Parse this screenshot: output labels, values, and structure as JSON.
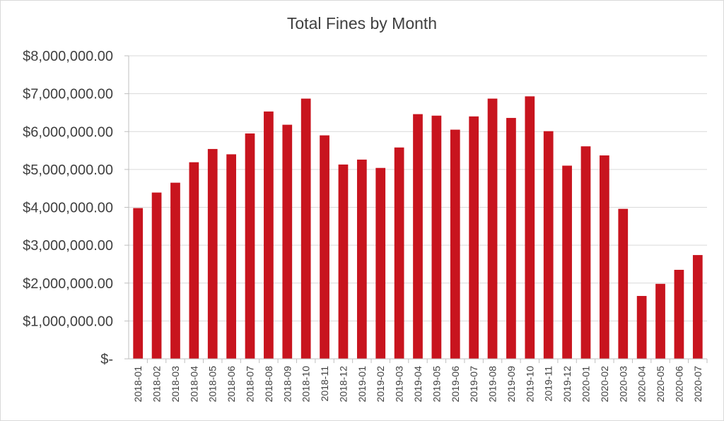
{
  "chart_data": {
    "type": "bar",
    "title": "Total Fines by Month",
    "xlabel": "",
    "ylabel": "",
    "ylim": [
      0,
      8000000
    ],
    "y_ticks": [
      {
        "value": 0,
        "label": "$-"
      },
      {
        "value": 1000000,
        "label": "$1,000,000.00"
      },
      {
        "value": 2000000,
        "label": "$2,000,000.00"
      },
      {
        "value": 3000000,
        "label": "$3,000,000.00"
      },
      {
        "value": 4000000,
        "label": "$4,000,000.00"
      },
      {
        "value": 5000000,
        "label": "$5,000,000.00"
      },
      {
        "value": 6000000,
        "label": "$6,000,000.00"
      },
      {
        "value": 7000000,
        "label": "$7,000,000.00"
      },
      {
        "value": 8000000,
        "label": "$8,000,000.00"
      }
    ],
    "grid": true,
    "legend": "none",
    "bar_color": "#c8141e",
    "categories": [
      "2018-01",
      "2018-02",
      "2018-03",
      "2018-04",
      "2018-05",
      "2018-06",
      "2018-07",
      "2018-08",
      "2018-09",
      "2018-10",
      "2018-11",
      "2018-12",
      "2019-01",
      "2019-02",
      "2019-03",
      "2019-04",
      "2019-05",
      "2019-06",
      "2019-07",
      "2019-08",
      "2019-09",
      "2019-10",
      "2019-11",
      "2019-12",
      "2020-01",
      "2020-02",
      "2020-03",
      "2020-04",
      "2020-05",
      "2020-06",
      "2020-07"
    ],
    "values": [
      3980000,
      4390000,
      4650000,
      5190000,
      5540000,
      5400000,
      5950000,
      6530000,
      6180000,
      6870000,
      5900000,
      5130000,
      5260000,
      5040000,
      5580000,
      6460000,
      6420000,
      6050000,
      6400000,
      6870000,
      6360000,
      6930000,
      6010000,
      5100000,
      5610000,
      5370000,
      3960000,
      1660000,
      1980000,
      2350000,
      2740000
    ]
  }
}
